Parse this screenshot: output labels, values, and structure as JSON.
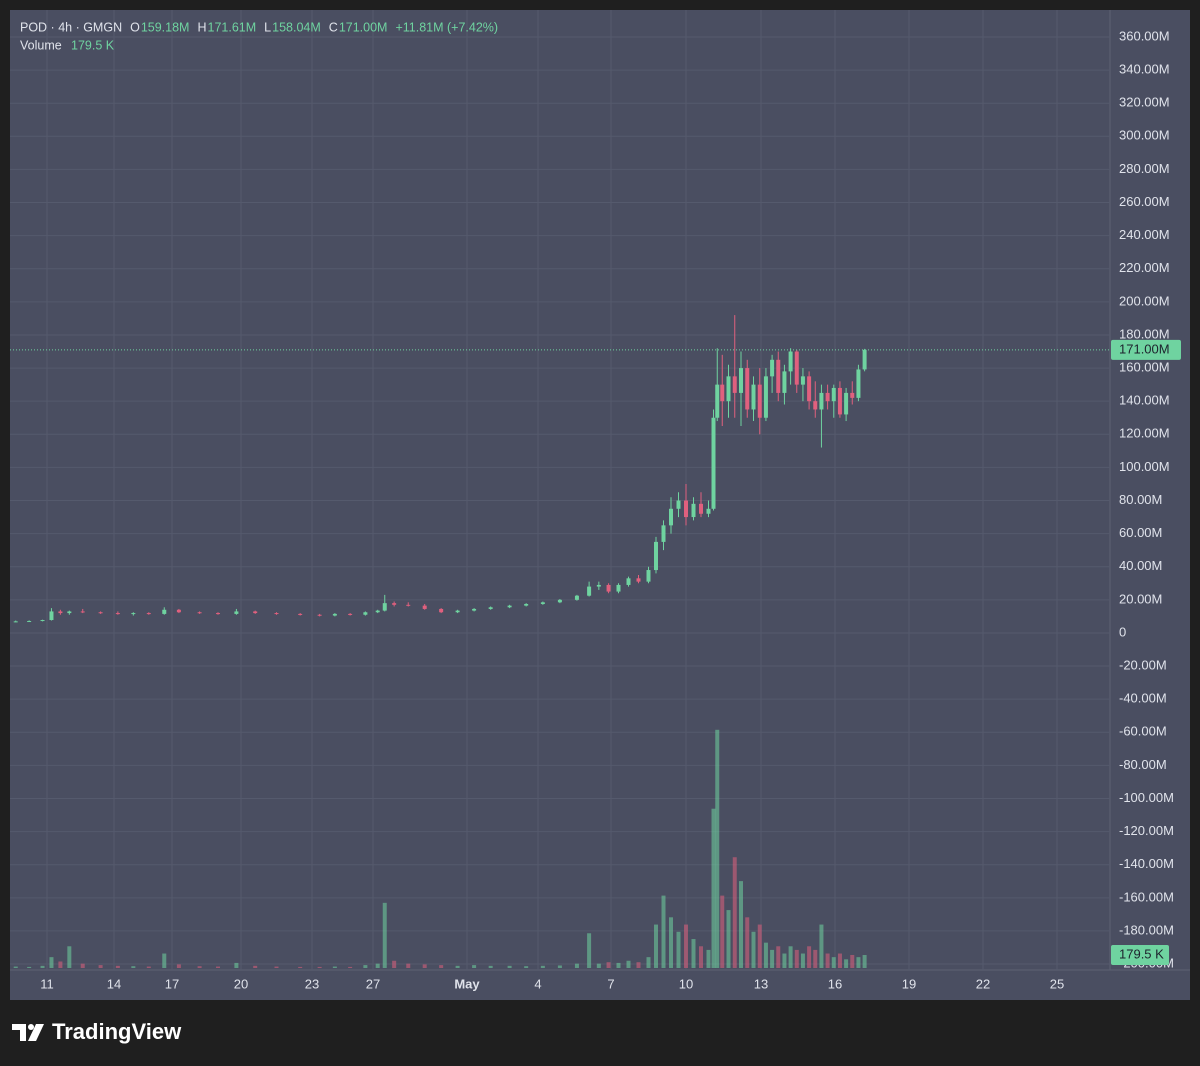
{
  "chart_data": {
    "type": "candlestick",
    "legend": {
      "symbol": "POD · 4h · GMGN",
      "items": [
        {
          "label": "O",
          "value": "159.18M"
        },
        {
          "label": "H",
          "value": "171.61M"
        },
        {
          "label": "L",
          "value": "158.04M"
        },
        {
          "label": "C",
          "value": "171.00M"
        }
      ],
      "change": "+11.81M (+7.42%)",
      "volume_label": "Volume",
      "volume_value": "179.5 K"
    },
    "up_color": "#6fd3a0",
    "down_color": "#e0607e",
    "grid": true,
    "x": [
      9.6,
      10.2,
      10.8,
      11.2,
      11.6,
      12.0,
      12.6,
      13.4,
      14.2,
      15.0,
      15.8,
      16.6,
      17.3,
      18.2,
      19.0,
      19.8,
      20.6,
      21.5,
      22.5,
      23.5,
      24.5,
      25.5,
      26.5,
      27.2,
      27.5,
      27.9,
      28.5,
      29.2,
      29.9,
      30.6,
      31.3,
      32.0,
      32.8,
      33.5,
      34.2,
      34.9,
      35.6,
      36.1,
      36.5,
      36.9,
      37.3,
      37.7,
      38.1,
      38.5,
      38.8,
      39.1,
      39.4,
      39.7,
      40.0,
      40.3,
      40.6,
      40.9,
      41.1,
      41.25,
      41.45,
      41.7,
      41.95,
      42.2,
      42.45,
      42.7,
      42.95,
      43.2,
      43.45,
      43.7,
      43.95,
      44.2,
      44.45,
      44.7,
      44.95,
      45.2,
      45.45,
      45.7,
      45.95,
      46.2,
      46.45,
      46.7,
      46.95,
      47.2
    ],
    "open": [
      7,
      7,
      7.2,
      7.8,
      13,
      12,
      13,
      12.5,
      12,
      11.5,
      12,
      11.5,
      14,
      12.5,
      12,
      11.5,
      13,
      12,
      11.5,
      11,
      10.5,
      11.5,
      11,
      12.5,
      13.5,
      18,
      17,
      16.5,
      14.5,
      12.5,
      13.5,
      14.5,
      15.5,
      16.5,
      17.5,
      18.5,
      20,
      22.5,
      28,
      29,
      25,
      29,
      33,
      31,
      38,
      55,
      65,
      75,
      80,
      70,
      78,
      72,
      75,
      130,
      150,
      140,
      155,
      145,
      160,
      135,
      150,
      130,
      155,
      165,
      145,
      158,
      170,
      150,
      155,
      140,
      135,
      145,
      140,
      148,
      132,
      145,
      142,
      159.18
    ],
    "high": [
      7.5,
      7.6,
      8,
      15,
      14,
      13.5,
      14.5,
      13,
      13,
      12.5,
      12.5,
      15.5,
      14.5,
      13,
      12.5,
      14.5,
      13.5,
      12.5,
      12,
      11.5,
      12,
      12,
      13,
      14,
      23,
      19,
      18.5,
      17.5,
      15,
      14,
      15,
      16,
      17,
      18,
      19,
      20.5,
      23,
      31,
      31,
      30,
      30,
      34,
      35,
      40,
      58,
      68,
      82,
      85,
      90,
      82,
      85,
      80,
      135,
      172,
      168,
      162,
      192,
      170,
      165,
      155,
      160,
      160,
      168,
      170,
      162,
      172,
      171,
      160,
      158,
      152,
      150,
      150,
      150,
      152,
      148,
      152,
      162,
      171.61
    ],
    "low": [
      6.5,
      6.8,
      7,
      7.5,
      11,
      11,
      12,
      11.5,
      11,
      10.5,
      11,
      11,
      12,
      11.5,
      11,
      11,
      11.5,
      11,
      10.5,
      10,
      10,
      10.5,
      10.5,
      12,
      13,
      16,
      16,
      14,
      12,
      12,
      13,
      14,
      15,
      16,
      17,
      18,
      19.5,
      22,
      26,
      24,
      24,
      28,
      30,
      30,
      36,
      50,
      60,
      70,
      65,
      68,
      70,
      70,
      74,
      128,
      125,
      130,
      130,
      125,
      130,
      128,
      120,
      128,
      145,
      140,
      138,
      150,
      145,
      140,
      135,
      130,
      112,
      135,
      130,
      130,
      128,
      138,
      140,
      158.04
    ],
    "close": [
      7,
      7.2,
      7.8,
      13,
      12,
      13,
      12.5,
      12,
      11.5,
      12,
      11.5,
      14,
      12.5,
      12,
      11.5,
      13,
      12,
      11.5,
      11,
      10.5,
      11.5,
      11,
      12.5,
      13.5,
      18,
      17,
      16.5,
      14.5,
      12.5,
      13.5,
      14.5,
      15.5,
      16.5,
      17.5,
      18.5,
      20,
      22.5,
      28,
      29,
      25,
      29,
      33,
      31,
      38,
      55,
      65,
      75,
      80,
      70,
      78,
      72,
      75,
      130,
      150,
      140,
      155,
      145,
      160,
      135,
      150,
      130,
      155,
      165,
      145,
      158,
      170,
      150,
      155,
      140,
      135,
      145,
      140,
      148,
      132,
      145,
      142,
      159.18,
      171
    ],
    "volume": [
      20,
      15,
      30,
      150,
      90,
      300,
      60,
      40,
      30,
      25,
      20,
      200,
      50,
      25,
      20,
      70,
      30,
      20,
      15,
      15,
      20,
      15,
      40,
      60,
      900,
      100,
      60,
      50,
      40,
      30,
      40,
      30,
      30,
      25,
      30,
      35,
      60,
      480,
      60,
      80,
      70,
      100,
      80,
      150,
      600,
      1000,
      700,
      500,
      600,
      400,
      300,
      250,
      2200,
      3290,
      1000,
      800,
      1530,
      1200,
      700,
      500,
      600,
      350,
      250,
      300,
      200,
      300,
      250,
      200,
      300,
      250,
      600,
      200,
      150,
      200,
      120,
      180,
      150,
      179.5
    ],
    "ylim": [
      -203.6,
      376.3
    ],
    "yticks": [
      {
        "value": 360,
        "label": "360.00M"
      },
      {
        "value": 340,
        "label": "340.00M"
      },
      {
        "value": 320,
        "label": "320.00M"
      },
      {
        "value": 300,
        "label": "300.00M"
      },
      {
        "value": 280,
        "label": "280.00M"
      },
      {
        "value": 260,
        "label": "260.00M"
      },
      {
        "value": 240,
        "label": "240.00M"
      },
      {
        "value": 220,
        "label": "220.00M"
      },
      {
        "value": 200,
        "label": "200.00M"
      },
      {
        "value": 180,
        "label": "180.00M"
      },
      {
        "value": 160,
        "label": "160.00M"
      },
      {
        "value": 140,
        "label": "140.00M"
      },
      {
        "value": 120,
        "label": "120.00M"
      },
      {
        "value": 100,
        "label": "100.00M"
      },
      {
        "value": 80,
        "label": "80.00M"
      },
      {
        "value": 60,
        "label": "60.00M"
      },
      {
        "value": 40,
        "label": "40.00M"
      },
      {
        "value": 20,
        "label": "20.00M"
      },
      0,
      {
        "value": -20,
        "label": "-20.00M"
      },
      {
        "value": -40,
        "label": "-40.00M"
      },
      {
        "value": -60,
        "label": "-60.00M"
      },
      {
        "value": -80,
        "label": "-80.00M"
      },
      {
        "value": -100,
        "label": "-100.00M"
      },
      {
        "value": -120,
        "label": "-120.00M"
      },
      {
        "value": -140,
        "label": "-140.00M"
      },
      {
        "value": -160,
        "label": "-160.00M"
      },
      {
        "value": -180,
        "label": "-180.00M"
      },
      {
        "value": -200,
        "label": "-200.00M"
      }
    ],
    "xlim": [
      9.34,
      57.15
    ],
    "xticks": [
      11,
      14,
      17,
      20,
      23,
      27,
      {
        "value": 31,
        "label": "May"
      },
      {
        "value": 34,
        "label": "4"
      },
      {
        "value": 37,
        "label": "7"
      },
      {
        "value": 40,
        "label": "10"
      },
      {
        "value": 43,
        "label": "13"
      },
      {
        "value": 46,
        "label": "16"
      },
      {
        "value": 49,
        "label": "19"
      },
      {
        "value": 52,
        "label": "22"
      },
      {
        "value": 55,
        "label": "25"
      }
    ],
    "vlim": [
      0,
      5000
    ],
    "last_price": {
      "value": 171,
      "label": "171.00M"
    },
    "last_volume": {
      "value": 179.5,
      "label": "179.5 K"
    }
  },
  "brand": "TradingView"
}
